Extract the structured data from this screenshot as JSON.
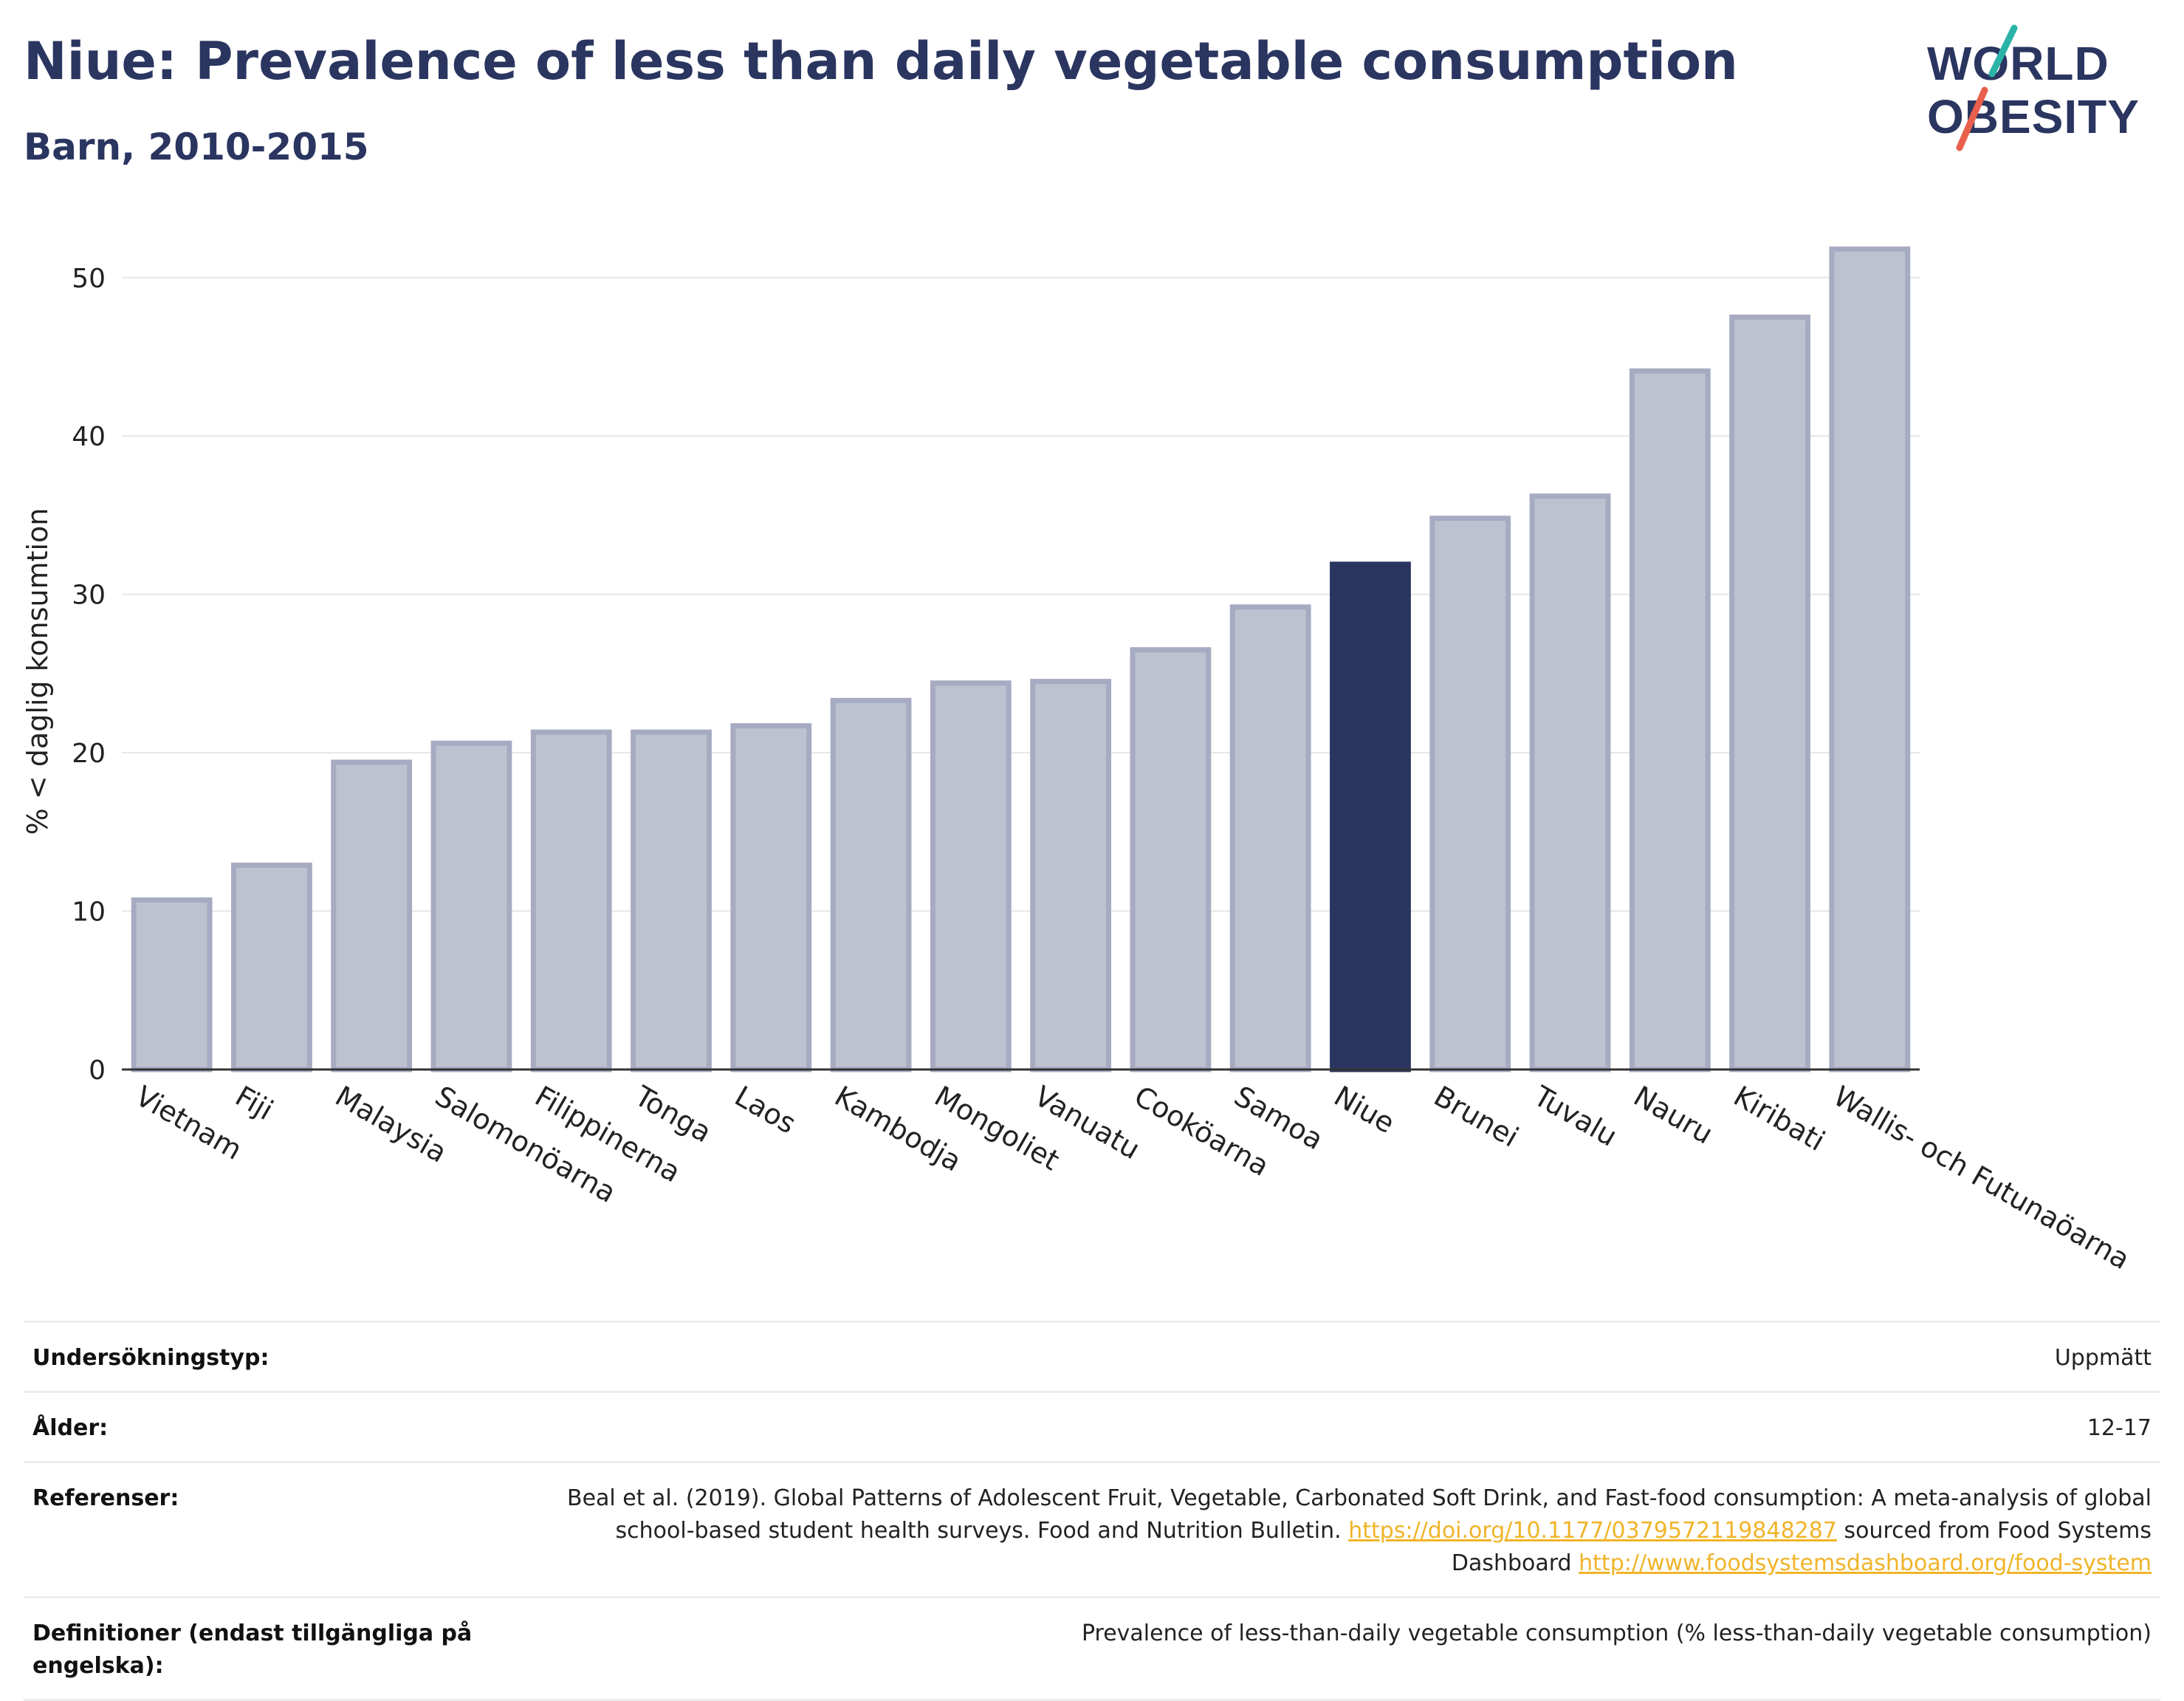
{
  "header": {
    "title": "Niue: Prevalence of less than daily vegetable consumption",
    "subtitle": "Barn, 2010-2015"
  },
  "logo": {
    "line1": "WORLD",
    "line2": "OBESITY",
    "accent_teal": "#2bb3a8",
    "accent_red": "#e8604c"
  },
  "colors": {
    "highlight": "#2a3560",
    "bar_fill": "#bec1cf",
    "bar_stroke": "#a7abc2",
    "link": "#f0b429"
  },
  "chart_data": {
    "type": "bar",
    "title": "",
    "xlabel": "",
    "ylabel": "% < daglig konsumtion",
    "ylim": [
      0,
      54
    ],
    "yticks": [
      0,
      10,
      20,
      30,
      40,
      50
    ],
    "grid": true,
    "highlight": "Niue",
    "categories": [
      "Vietnam",
      "Fiji",
      "Malaysia",
      "Salomonöarna",
      "Filippinerna",
      "Tonga",
      "Laos",
      "Kambodja",
      "Mongoliet",
      "Vanuatu",
      "Cooköarna",
      "Samoa",
      "Niue",
      "Brunei",
      "Tuvalu",
      "Nauru",
      "Kiribati",
      "Wallis- och Futunaöarna"
    ],
    "values": [
      10.7,
      12.9,
      19.4,
      20.6,
      21.3,
      21.3,
      21.7,
      23.3,
      24.4,
      24.5,
      26.5,
      29.2,
      31.9,
      34.8,
      36.2,
      44.1,
      47.5,
      51.8
    ]
  },
  "info": {
    "rows": [
      {
        "label": "Undersökningstyp:",
        "value": "Uppmätt"
      },
      {
        "label": "Ålder:",
        "value": "12-17"
      },
      {
        "label": "Referenser:",
        "value_part1": "Beal et al. (2019). Global Patterns of Adolescent Fruit, Vegetable, Carbonated Soft Drink, and Fast-food consumption: A meta-analysis of global school-based student health surveys. Food and Nutrition Bulletin.",
        "link1": "https://doi.org/10.1177/0379572119848287",
        "value_part2": "sourced from Food Systems Dashboard",
        "link2": "http://www.foodsystemsdashboard.org/food-system"
      },
      {
        "label": "Definitioner (endast tillgängliga på engelska):",
        "value": "Prevalence of less-than-daily vegetable consumption (% less-than-daily vegetable consumption)"
      }
    ]
  }
}
